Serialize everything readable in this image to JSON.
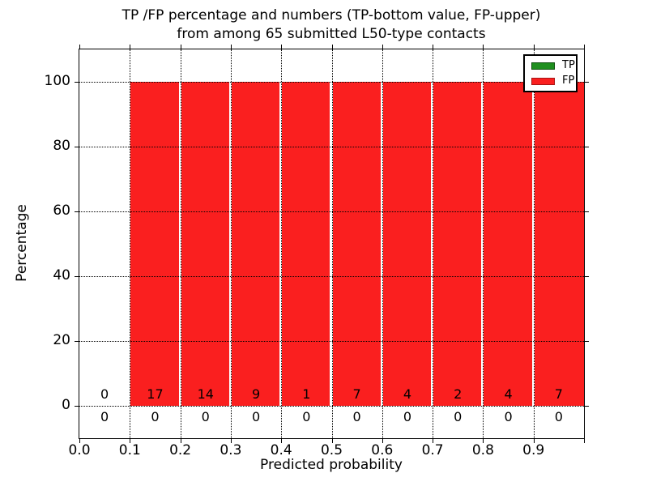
{
  "chart_data": {
    "type": "bar",
    "title_lines": [
      "TP /FP percentage and numbers (TP-bottom value, FP-upper)",
      "from among 65 submitted L50-type contacts"
    ],
    "xlabel": "Predicted probability",
    "ylabel": "Percentage",
    "xlim": [
      0.0,
      1.0
    ],
    "ylim": [
      -10,
      110
    ],
    "grid": {
      "style": "dotted",
      "color": "#000000"
    },
    "bin_edges": [
      0.0,
      0.1,
      0.2,
      0.3,
      0.4,
      0.5,
      0.6,
      0.7,
      0.8,
      0.9,
      1.0
    ],
    "x_ticks": [
      {
        "value": 0.0,
        "label": "0.0"
      },
      {
        "value": 0.1,
        "label": "0.1"
      },
      {
        "value": 0.2,
        "label": "0.2"
      },
      {
        "value": 0.3,
        "label": "0.3"
      },
      {
        "value": 0.4,
        "label": "0.4"
      },
      {
        "value": 0.5,
        "label": "0.5"
      },
      {
        "value": 0.6,
        "label": "0.6"
      },
      {
        "value": 0.7,
        "label": "0.7"
      },
      {
        "value": 0.8,
        "label": "0.8"
      },
      {
        "value": 0.9,
        "label": "0.9"
      }
    ],
    "y_ticks": [
      {
        "value": 0,
        "label": "0"
      },
      {
        "value": 20,
        "label": "20"
      },
      {
        "value": 40,
        "label": "40"
      },
      {
        "value": 60,
        "label": "60"
      },
      {
        "value": 80,
        "label": "80"
      },
      {
        "value": 100,
        "label": "100"
      }
    ],
    "series": [
      {
        "name": "TP",
        "color": "#1f8f1f",
        "edge_color": "#0b4d0b",
        "percent": [
          0,
          0,
          0,
          0,
          0,
          0,
          0,
          0,
          0,
          0
        ],
        "counts": [
          0,
          0,
          0,
          0,
          0,
          0,
          0,
          0,
          0,
          0
        ],
        "count_label_position": "below-baseline"
      },
      {
        "name": "FP",
        "color": "#fa1f1f",
        "edge_color": "#a81414",
        "percent": [
          0,
          100,
          100,
          100,
          100,
          100,
          100,
          100,
          100,
          100
        ],
        "counts": [
          0,
          17,
          14,
          9,
          1,
          7,
          4,
          2,
          4,
          7
        ],
        "count_label_position": "above-baseline"
      }
    ],
    "legend": {
      "position": "upper-right",
      "entries": [
        {
          "label": "TP",
          "color": "#1f8f1f",
          "edge_color": "#0b4d0b"
        },
        {
          "label": "FP",
          "color": "#fa1f1f",
          "edge_color": "#a81414"
        }
      ]
    }
  }
}
